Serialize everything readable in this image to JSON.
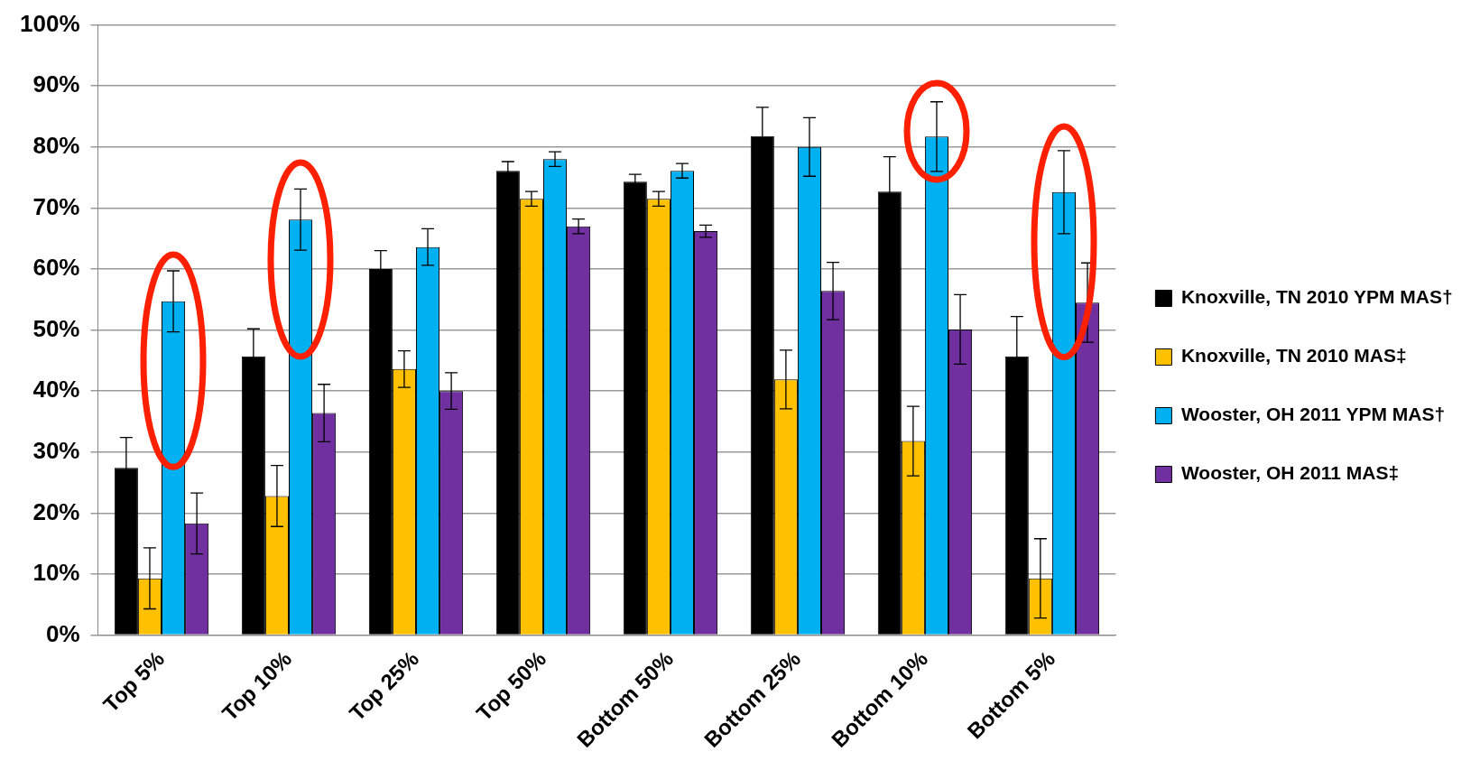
{
  "chart_data": {
    "type": "bar",
    "categories": [
      "Top 5%",
      "Top 10%",
      "Top 25%",
      "Top 50%",
      "Bottom 50%",
      "Bottom 25%",
      "Bottom 10%",
      "Bottom 5%"
    ],
    "series": [
      {
        "name": "Knoxville, TN 2010 YPM MAS†",
        "color": "#000000",
        "values": [
          27.4,
          45.7,
          60.0,
          76.1,
          74.3,
          81.8,
          72.7,
          45.7
        ],
        "errors": [
          5,
          4.5,
          3,
          1.5,
          1.2,
          4.7,
          5.7,
          6.5
        ]
      },
      {
        "name": "Knoxville, TN 2010 MAS‡",
        "color": "#ffc000",
        "values": [
          9.3,
          22.8,
          43.6,
          71.5,
          71.5,
          41.9,
          31.8,
          9.3
        ],
        "errors": [
          5,
          5,
          3,
          1.2,
          1.2,
          4.8,
          5.7,
          6.5
        ]
      },
      {
        "name": "Wooster, OH 2011 YPM MAS†",
        "color": "#00b0f0",
        "values": [
          54.7,
          68.1,
          63.6,
          78.0,
          76.1,
          80.0,
          81.7,
          72.6
        ],
        "errors": [
          5,
          5,
          3,
          1.2,
          1.2,
          4.8,
          5.7,
          6.8
        ]
      },
      {
        "name": "Wooster, OH 2011 MAS‡",
        "color": "#7030a0",
        "values": [
          18.3,
          36.4,
          40.0,
          67.0,
          66.2,
          56.4,
          50.1,
          54.5
        ],
        "errors": [
          5,
          4.7,
          3,
          1.2,
          1,
          4.7,
          5.7,
          6.5
        ]
      }
    ],
    "ylim": [
      0,
      100
    ],
    "yticks": [
      {
        "value": 0,
        "label": "0%"
      },
      {
        "value": 10,
        "label": "10%"
      },
      {
        "value": 20,
        "label": "20%"
      },
      {
        "value": 30,
        "label": "30%"
      },
      {
        "value": 40,
        "label": "40%"
      },
      {
        "value": 50,
        "label": "50%"
      },
      {
        "value": 60,
        "label": "60%"
      },
      {
        "value": 70,
        "label": "70%"
      },
      {
        "value": 80,
        "label": "80%"
      },
      {
        "value": 90,
        "label": "90%"
      },
      {
        "value": 100,
        "label": "100%"
      }
    ],
    "grid": "y",
    "legend": "right"
  }
}
